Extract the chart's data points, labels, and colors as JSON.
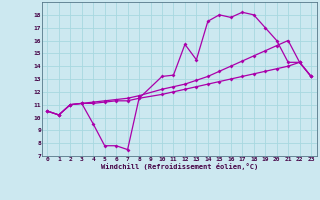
{
  "xlabel": "Windchill (Refroidissement éolien,°C)",
  "bg_color": "#cce8f0",
  "line_color": "#aa00aa",
  "grid_color": "#a8d8e0",
  "xlim": [
    -0.5,
    23.5
  ],
  "ylim": [
    7,
    19
  ],
  "xticks": [
    0,
    1,
    2,
    3,
    4,
    5,
    6,
    7,
    8,
    9,
    10,
    11,
    12,
    13,
    14,
    15,
    16,
    17,
    18,
    19,
    20,
    21,
    22,
    23
  ],
  "yticks": [
    7,
    8,
    9,
    10,
    11,
    12,
    13,
    14,
    15,
    16,
    17,
    18
  ],
  "line1_x": [
    0,
    1,
    2,
    3,
    4,
    5,
    6,
    7,
    8,
    10,
    11,
    12,
    13,
    14,
    15,
    16,
    17,
    18,
    19,
    20,
    21,
    22,
    23
  ],
  "line1_y": [
    10.5,
    10.2,
    11.0,
    11.1,
    9.5,
    7.8,
    7.8,
    7.5,
    11.5,
    13.2,
    13.3,
    15.7,
    14.5,
    17.5,
    18.0,
    17.8,
    18.2,
    18.0,
    17.0,
    16.0,
    14.3,
    14.3,
    13.2
  ],
  "line2_x": [
    0,
    1,
    2,
    3,
    4,
    5,
    6,
    7,
    8,
    10,
    11,
    12,
    13,
    14,
    15,
    16,
    17,
    18,
    19,
    20,
    21,
    22,
    23
  ],
  "line2_y": [
    10.5,
    10.2,
    11.0,
    11.1,
    11.2,
    11.3,
    11.4,
    11.5,
    11.7,
    12.2,
    12.4,
    12.6,
    12.9,
    13.2,
    13.6,
    14.0,
    14.4,
    14.8,
    15.2,
    15.6,
    16.0,
    14.3,
    13.2
  ],
  "line3_x": [
    0,
    1,
    2,
    3,
    4,
    5,
    6,
    7,
    8,
    10,
    11,
    12,
    13,
    14,
    15,
    16,
    17,
    18,
    19,
    20,
    21,
    22,
    23
  ],
  "line3_y": [
    10.5,
    10.2,
    11.0,
    11.1,
    11.1,
    11.2,
    11.3,
    11.3,
    11.5,
    11.8,
    12.0,
    12.2,
    12.4,
    12.6,
    12.8,
    13.0,
    13.2,
    13.4,
    13.6,
    13.8,
    14.0,
    14.3,
    13.2
  ]
}
